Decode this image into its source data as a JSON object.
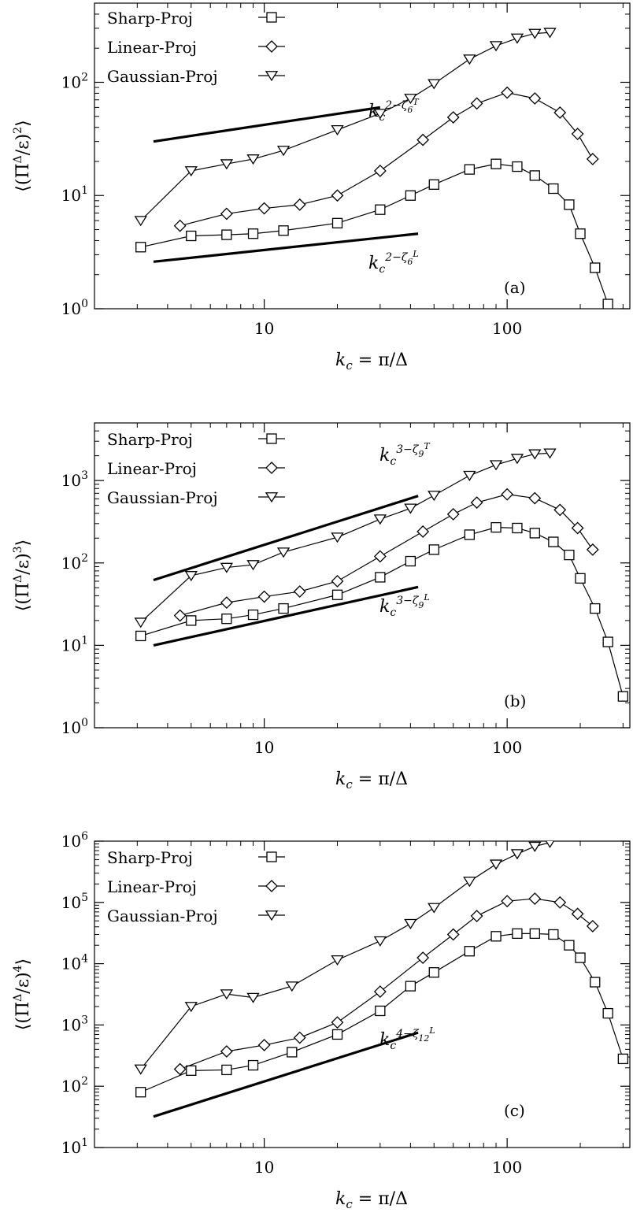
{
  "chart_data": [
    {
      "type": "line",
      "panel_label": "(a)",
      "xlabel": "k_c = π/Δ",
      "ylabel": "⟨(Π̄^Δ/ε)^2⟩",
      "xscale": "log",
      "yscale": "log",
      "xlim": [
        2,
        320
      ],
      "ylim": [
        1,
        500
      ],
      "xticks": [
        10,
        100
      ],
      "xtick_labels": [
        "10",
        "100"
      ],
      "yticks": [
        1,
        10,
        100
      ],
      "ytick_labels": [
        "10^0",
        "10^1",
        "10^2"
      ],
      "legend_position": "top-left",
      "series": [
        {
          "name": "Sharp-Proj",
          "marker": "square",
          "x": [
            3.1,
            5.0,
            7.0,
            9.0,
            12.0,
            20.0,
            30.0,
            40.0,
            50.0,
            70.0,
            90.0,
            110.0,
            130.0,
            155.0,
            180.0,
            200.0,
            230.0,
            260.0
          ],
          "y": [
            3.5,
            4.4,
            4.5,
            4.6,
            4.9,
            5.7,
            7.5,
            10.0,
            12.5,
            17.0,
            19.0,
            18.0,
            15.0,
            11.5,
            8.3,
            4.6,
            2.3,
            1.1
          ]
        },
        {
          "name": "Linear-Proj",
          "marker": "diamond",
          "x": [
            4.5,
            7.0,
            10.0,
            14.0,
            20.0,
            30.0,
            45.0,
            60.0,
            75.0,
            100.0,
            130.0,
            165.0,
            195.0,
            225.0
          ],
          "y": [
            5.4,
            6.9,
            7.7,
            8.3,
            10.0,
            16.5,
            31.0,
            49.0,
            65.0,
            81.0,
            72.0,
            54.0,
            35.0,
            21.0
          ]
        },
        {
          "name": "Gaussian-Proj",
          "marker": "triangle-down",
          "x": [
            3.1,
            5.0,
            7.0,
            9.0,
            12.0,
            20.0,
            30.0,
            40.0,
            50.0,
            70.0,
            90.0,
            110.0,
            130.0,
            150.0
          ],
          "y": [
            6.0,
            16.5,
            19.0,
            21.0,
            25.0,
            38.0,
            53.0,
            72.0,
            97.0,
            160.0,
            210.0,
            245.0,
            270.0,
            275.0
          ]
        }
      ],
      "reference_lines": [
        {
          "label": "k_c^{2-ζ_6^T}",
          "sub": "6",
          "sup": "T",
          "power": "2",
          "x": [
            3.5,
            30
          ],
          "y": [
            30,
            60
          ]
        },
        {
          "label": "k_c^{2-ζ_6^L}",
          "sub": "6",
          "sup": "L",
          "power": "2",
          "x": [
            3.5,
            43
          ],
          "y": [
            2.6,
            4.6
          ]
        }
      ]
    },
    {
      "type": "line",
      "panel_label": "(b)",
      "xlabel": "k_c = π/Δ",
      "ylabel": "⟨(Π̄^Δ/ε)^3⟩",
      "xscale": "log",
      "yscale": "log",
      "xlim": [
        2,
        320
      ],
      "ylim": [
        1,
        5000
      ],
      "xticks": [
        10,
        100
      ],
      "xtick_labels": [
        "10",
        "100"
      ],
      "yticks": [
        1,
        10,
        100,
        1000
      ],
      "ytick_labels": [
        "10^0",
        "10^1",
        "10^2",
        "10^3"
      ],
      "legend_position": "top-left",
      "series": [
        {
          "name": "Sharp-Proj",
          "marker": "square",
          "x": [
            3.1,
            5.0,
            7.0,
            9.0,
            12.0,
            20.0,
            30.0,
            40.0,
            50.0,
            70.0,
            90.0,
            110.0,
            130.0,
            155.0,
            180.0,
            200.0,
            230.0,
            260.0,
            300.0
          ],
          "y": [
            13.0,
            20.0,
            21.0,
            23.5,
            28.0,
            41.0,
            67.0,
            105.0,
            145.0,
            220.0,
            270.0,
            265.0,
            230.0,
            180.0,
            125.0,
            65.0,
            28.0,
            11.0,
            2.4
          ]
        },
        {
          "name": "Linear-Proj",
          "marker": "diamond",
          "x": [
            4.5,
            7.0,
            10.0,
            14.0,
            20.0,
            30.0,
            45.0,
            60.0,
            75.0,
            100.0,
            130.0,
            165.0,
            195.0,
            225.0
          ],
          "y": [
            23.0,
            33.0,
            39.0,
            45.0,
            60.0,
            120.0,
            240.0,
            390.0,
            540.0,
            680.0,
            610.0,
            440.0,
            265.0,
            145.0
          ]
        },
        {
          "name": "Gaussian-Proj",
          "marker": "triangle-down",
          "x": [
            3.1,
            5.0,
            7.0,
            9.0,
            12.0,
            20.0,
            30.0,
            40.0,
            50.0,
            70.0,
            90.0,
            110.0,
            130.0,
            150.0
          ],
          "y": [
            19.0,
            70.0,
            88.0,
            95.0,
            135.0,
            205.0,
            340.0,
            460.0,
            660.0,
            1150.0,
            1550.0,
            1850.0,
            2100.0,
            2150.0
          ]
        }
      ],
      "reference_lines": [
        {
          "label": "k_c^{3-ζ_9^T}",
          "sub": "9",
          "sup": "T",
          "power": "3",
          "x": [
            3.5,
            43
          ],
          "y": [
            62,
            650
          ]
        },
        {
          "label": "k_c^{3-ζ_9^L}",
          "sub": "9",
          "sup": "L",
          "power": "3",
          "x": [
            3.5,
            43
          ],
          "y": [
            10,
            51
          ]
        }
      ]
    },
    {
      "type": "line",
      "panel_label": "(c)",
      "xlabel": "k_c = π/Δ",
      "ylabel": "⟨(Π̄^Δ/ε)^4⟩",
      "xscale": "log",
      "yscale": "log",
      "xlim": [
        2,
        320
      ],
      "ylim": [
        10,
        1000000
      ],
      "xticks": [
        10,
        100
      ],
      "xtick_labels": [
        "10",
        "100"
      ],
      "yticks": [
        10,
        100,
        1000,
        10000,
        100000,
        1000000
      ],
      "ytick_labels": [
        "10^1",
        "10^2",
        "10^3",
        "10^4",
        "10^5",
        "10^6"
      ],
      "legend_position": "top-left",
      "series": [
        {
          "name": "Sharp-Proj",
          "marker": "square",
          "x": [
            3.1,
            5.0,
            7.0,
            9.0,
            13.0,
            20.0,
            30.0,
            40.0,
            50.0,
            70.0,
            90.0,
            110.0,
            130.0,
            155.0,
            180.0,
            200.0,
            230.0,
            260.0,
            300.0
          ],
          "y": [
            80,
            180,
            185,
            220,
            360,
            700,
            1700,
            4300,
            7200,
            16000,
            28000,
            31000,
            31000,
            30000,
            20000,
            12500,
            5000,
            1550,
            280
          ]
        },
        {
          "name": "Linear-Proj",
          "marker": "diamond",
          "x": [
            4.5,
            7.0,
            10.0,
            14.0,
            20.0,
            30.0,
            45.0,
            60.0,
            75.0,
            100.0,
            130.0,
            165.0,
            195.0,
            225.0
          ],
          "y": [
            190,
            370,
            470,
            620,
            1100,
            3500,
            12500,
            30000,
            60000,
            105000,
            115000,
            100000,
            65000,
            41000
          ]
        },
        {
          "name": "Gaussian-Proj",
          "marker": "triangle-down",
          "x": [
            3.1,
            5.0,
            7.0,
            9.0,
            13.0,
            20.0,
            30.0,
            40.0,
            50.0,
            70.0,
            90.0,
            110.0,
            130.0,
            150.0
          ],
          "y": [
            190,
            2000,
            3200,
            2800,
            4300,
            11500,
            23500,
            45000,
            82000,
            220000,
            420000,
            620000,
            820000,
            950000
          ]
        }
      ],
      "reference_lines": [
        {
          "label": "k_c^{4-ζ_12^L}",
          "sub": "12",
          "sup": "L",
          "power": "4",
          "x": [
            3.5,
            43
          ],
          "y": [
            32,
            750
          ]
        }
      ]
    }
  ]
}
